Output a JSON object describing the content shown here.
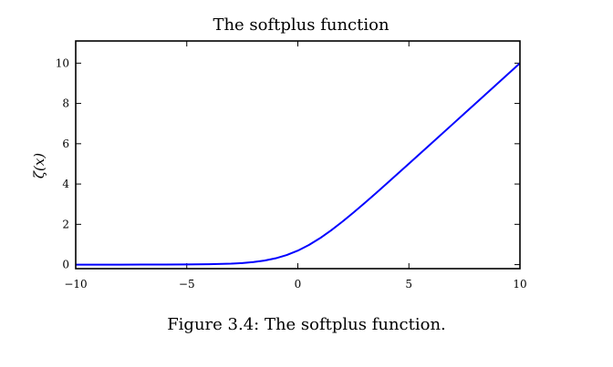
{
  "chart_data": {
    "type": "line",
    "title": "The softplus function",
    "xlabel": "",
    "ylabel": "ζ(x)",
    "xlim": [
      -10,
      10
    ],
    "ylim": [
      -0.2,
      11.1
    ],
    "xticks": [
      -10,
      -5,
      0,
      5,
      10
    ],
    "xtick_labels": [
      "−10",
      "−5",
      "0",
      "5",
      "10"
    ],
    "yticks": [
      0,
      2,
      4,
      6,
      8,
      10
    ],
    "ytick_labels": [
      "0",
      "2",
      "4",
      "6",
      "8",
      "10"
    ],
    "grid": false,
    "series": [
      {
        "color": "#0000ff",
        "x": [
          -10,
          -9,
          -8,
          -7,
          -6,
          -5,
          -4,
          -3,
          -2.5,
          -2,
          -1.5,
          -1,
          -0.5,
          0,
          0.5,
          1,
          1.5,
          2,
          2.5,
          3,
          3.5,
          4,
          5,
          6,
          7,
          8,
          9,
          10
        ],
        "y": [
          5e-05,
          0.00012,
          0.00034,
          0.0009,
          0.0025,
          0.0067,
          0.018,
          0.049,
          0.079,
          0.127,
          0.201,
          0.313,
          0.474,
          0.693,
          0.974,
          1.313,
          1.701,
          2.127,
          2.579,
          3.049,
          3.53,
          4.018,
          5.007,
          6.002,
          7.001,
          8.0,
          9.0,
          10.0
        ]
      }
    ]
  },
  "caption": "Figure 3.4: The softplus function."
}
